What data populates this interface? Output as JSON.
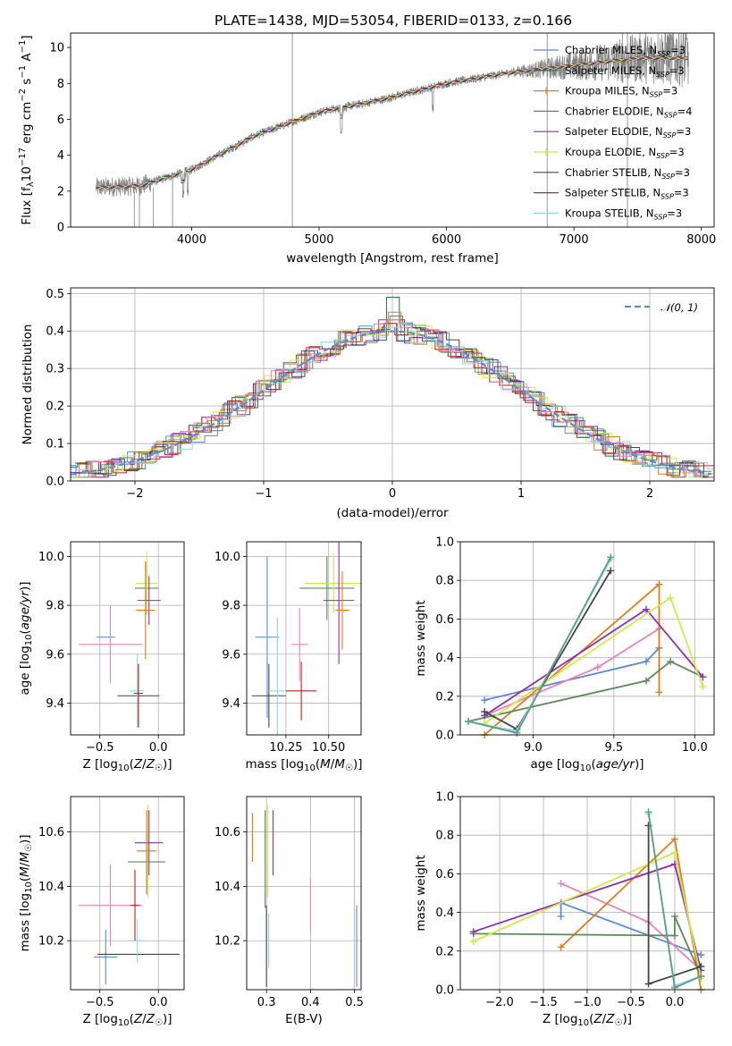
{
  "figure": {
    "title": "PLATE=1438, MJD=53054, FIBERID=0133, z=0.166"
  },
  "chart_data": [
    {
      "id": "spectrum",
      "type": "line",
      "xlabel": "wavelength [Angstrom, rest frame]",
      "ylabel": "Flux [f_λ 10^-17 erg cm^-2 s^-1 A^-1]",
      "xlim": [
        3050,
        8100
      ],
      "ylim": [
        0,
        10.8
      ],
      "xticks": [
        4000,
        5000,
        6000,
        7000,
        8000
      ],
      "yticks": [
        0,
        2,
        4,
        6,
        8,
        10
      ],
      "legend_position": "top-right",
      "grid": false,
      "series": [
        {
          "name": "Chabrier MILES, N_SSP=3",
          "color": "#5b8bd6",
          "x": [
            3250,
            3600,
            4000,
            4500,
            5000,
            5500,
            6000,
            6500,
            7000,
            7500
          ],
          "y": [
            2.2,
            2.3,
            3.2,
            5.1,
            6.4,
            7.1,
            8.0,
            8.6,
            9.0,
            9.4
          ]
        },
        {
          "name": "Salpeter MILES, N_SSP=3",
          "color": "#2f6b4f",
          "x": [
            3250,
            3600,
            4000,
            4500,
            5000,
            5500,
            6000,
            6500,
            7000,
            7500
          ],
          "y": [
            2.2,
            2.3,
            3.2,
            5.1,
            6.4,
            7.1,
            8.0,
            8.6,
            9.0,
            9.4
          ]
        },
        {
          "name": "Kroupa MILES, N_SSP=3",
          "color": "#e07b18",
          "x": [
            3250,
            3600,
            4000,
            4500,
            5000,
            5500,
            6000,
            6500,
            7000,
            7500
          ],
          "y": [
            2.2,
            2.3,
            3.2,
            5.1,
            6.4,
            7.1,
            8.0,
            8.6,
            9.0,
            9.4
          ]
        },
        {
          "name": "Chabrier ELODIE, N_SSP=4",
          "color": "#5a8a5a",
          "x": [
            3250,
            3600,
            4000,
            4500,
            5000,
            5500,
            6000,
            6500,
            7000,
            7500
          ],
          "y": [
            2.2,
            2.3,
            3.2,
            5.1,
            6.4,
            7.1,
            8.0,
            8.6,
            9.0,
            9.4
          ]
        },
        {
          "name": "Salpeter ELODIE, N_SSP=3",
          "color": "#8e2fb0",
          "x": [
            3250,
            3600,
            4000,
            4500,
            5000,
            5500,
            6000,
            6500,
            7000,
            7500
          ],
          "y": [
            2.2,
            2.3,
            3.2,
            5.1,
            6.4,
            7.1,
            8.0,
            8.6,
            9.0,
            9.4
          ]
        },
        {
          "name": "Kroupa ELODIE, N_SSP=3",
          "color": "#d2e84a",
          "x": [
            3250,
            3600,
            4000,
            4500,
            5000,
            5500,
            6000,
            6500,
            7000,
            7500
          ],
          "y": [
            2.2,
            2.3,
            3.2,
            5.1,
            6.4,
            7.1,
            8.0,
            8.6,
            9.0,
            9.4
          ]
        },
        {
          "name": "Chabrier STELIB, N_SSP=3",
          "color": "#444444",
          "x": [
            3250,
            3600,
            4000,
            4500,
            5000,
            5500,
            6000,
            6500,
            7000,
            7500
          ],
          "y": [
            2.2,
            2.3,
            3.2,
            5.1,
            6.4,
            7.1,
            8.0,
            8.6,
            9.0,
            9.4
          ]
        },
        {
          "name": "Salpeter STELIB, N_SSP=3",
          "color": "#c0211c",
          "x": [
            3250,
            3600,
            4000,
            4500,
            5000,
            5500,
            6000,
            6500,
            7000,
            7500
          ],
          "y": [
            2.2,
            2.3,
            3.2,
            5.1,
            6.4,
            7.1,
            8.0,
            8.6,
            9.0,
            9.4
          ]
        },
        {
          "name": "Kroupa STELIB, N_SSP=3",
          "color": "#8fd8de",
          "x": [
            3250,
            3600,
            4000,
            4500,
            5000,
            5500,
            6000,
            6500,
            7000,
            7500
          ],
          "y": [
            2.2,
            2.3,
            3.2,
            5.1,
            6.4,
            7.1,
            8.0,
            8.6,
            9.0,
            9.4
          ]
        }
      ],
      "observed_color": "#808080",
      "observed_envelope_x": [
        3250,
        3600,
        4000,
        4500,
        5000,
        5500,
        6000,
        6500,
        7000,
        7500,
        7900
      ],
      "observed_envelope_y": [
        2.2,
        2.3,
        3.2,
        5.1,
        6.4,
        7.1,
        8.0,
        8.6,
        9.0,
        9.4,
        9.6
      ]
    },
    {
      "id": "residuals",
      "type": "area",
      "xlabel": "(data-model)/error",
      "ylabel": "Normed distribution",
      "xlim": [
        -2.5,
        2.5
      ],
      "ylim": [
        0,
        0.515
      ],
      "xticks": [
        -2,
        -1,
        0,
        1,
        2
      ],
      "yticks": [
        0.0,
        0.1,
        0.2,
        0.3,
        0.4,
        0.5
      ],
      "grid": true,
      "legend_position": "top-right",
      "reference_curve": {
        "name": "𝒩(0, 1)",
        "color": "#5b8bd6",
        "style": "dashed",
        "mean": 0,
        "sigma": 1
      },
      "bin_edges": [
        -2.5,
        -2.4,
        -2.3,
        -2.2,
        -2.1,
        -2.0,
        -1.9,
        -1.8,
        -1.7,
        -1.6,
        -1.5,
        -1.4,
        -1.3,
        -1.2,
        -1.1,
        -1.0,
        -0.9,
        -0.8,
        -0.7,
        -0.6,
        -0.5,
        -0.4,
        -0.3,
        -0.2,
        -0.1,
        0.0,
        0.1,
        0.2,
        0.3,
        0.4,
        0.5,
        0.6,
        0.7,
        0.8,
        0.9,
        1.0,
        1.1,
        1.2,
        1.3,
        1.4,
        1.5,
        1.6,
        1.7,
        1.8,
        1.9,
        2.0,
        2.1,
        2.2,
        2.3,
        2.4,
        2.5
      ],
      "series_colors": [
        "#5b8bd6",
        "#2f6b4f",
        "#e07b18",
        "#5a8a5a",
        "#8e2fb0",
        "#d2e84a",
        "#444444",
        "#c0211c",
        "#8fd8de",
        "#e884b8"
      ],
      "base_density_note": "histograms follow the standard normal within ±0.05",
      "peak_values": {
        "x": [
          0.0,
          0.0,
          0.0,
          0.0,
          0.0,
          0.0,
          0.0,
          0.0,
          0.0,
          0.0
        ],
        "y": [
          0.42,
          0.49,
          0.45,
          0.44,
          0.43,
          0.42,
          0.41,
          0.42,
          0.41,
          0.43
        ]
      }
    },
    {
      "id": "age_vs_Z",
      "type": "scatter",
      "xlabel": "Z [log10(Z/Z☉)]",
      "ylabel": "age  [log10(age/yr)]",
      "xlim": [
        -0.75,
        0.22
      ],
      "ylim": [
        9.27,
        10.06
      ],
      "xticks": [
        -0.5,
        0.0
      ],
      "yticks": [
        9.4,
        9.6,
        9.8,
        10.0
      ],
      "grid": true,
      "points": [
        {
          "color": "#5b8bd6",
          "x": -0.45,
          "y": 9.67,
          "xerr": 0.08,
          "yerr": 0.0
        },
        {
          "color": "#e884b8",
          "x": -0.41,
          "y": 9.64,
          "xerr": 0.27,
          "yerr": 0.16
        },
        {
          "color": "#444444",
          "x": -0.17,
          "y": 9.43,
          "xerr": 0.18,
          "yerr": 0.13
        },
        {
          "color": "#5a8a5a",
          "x": -0.1,
          "y": 9.87,
          "xerr": 0.1,
          "yerr": 0.1
        },
        {
          "color": "#d2e84a",
          "x": -0.1,
          "y": 9.89,
          "xerr": 0.09,
          "yerr": 0.13
        },
        {
          "color": "#8e2fb0",
          "x": -0.08,
          "y": 9.82,
          "xerr": 0.1,
          "yerr": 0.1
        },
        {
          "color": "#e07b18",
          "x": -0.11,
          "y": 9.78,
          "xerr": 0.08,
          "yerr": 0.2
        },
        {
          "color": "#8fd8de",
          "x": -0.18,
          "y": 9.45,
          "xerr": 0.06,
          "yerr": 0.15
        },
        {
          "color": "#c0211c",
          "x": -0.17,
          "y": 9.44,
          "xerr": 0.04,
          "yerr": 0.12
        }
      ]
    },
    {
      "id": "age_vs_mass",
      "type": "scatter",
      "xlabel": "mass [log10(M/M☉)]",
      "ylabel": "",
      "xlim": [
        10.02,
        10.69
      ],
      "ylim": [
        9.27,
        10.06
      ],
      "xticks": [
        10.25,
        10.5
      ],
      "yticks": [
        9.4,
        9.6,
        9.8,
        10.0
      ],
      "grid": true,
      "points": [
        {
          "color": "#5b8bd6",
          "x": 10.14,
          "y": 9.67,
          "xerr": 0.07,
          "yerr": 0.33
        },
        {
          "color": "#444444",
          "x": 10.15,
          "y": 9.43,
          "xerr": 0.1,
          "yerr": 0.13
        },
        {
          "color": "#8fd8de",
          "x": 10.2,
          "y": 9.45,
          "xerr": 0.05,
          "yerr": 0.3
        },
        {
          "color": "#e884b8",
          "x": 10.33,
          "y": 9.64,
          "xerr": 0.05,
          "yerr": 0.15
        },
        {
          "color": "#c0211c",
          "x": 10.34,
          "y": 9.45,
          "xerr": 0.09,
          "yerr": 0.12
        },
        {
          "color": "#5a8a5a",
          "x": 10.49,
          "y": 9.87,
          "xerr": 0.16,
          "yerr": 0.13
        },
        {
          "color": "#d2e84a",
          "x": 10.53,
          "y": 9.89,
          "xerr": 0.17,
          "yerr": 0.12
        },
        {
          "color": "#8e2fb0",
          "x": 10.56,
          "y": 9.82,
          "xerr": 0.09,
          "yerr": 0.26
        },
        {
          "color": "#e07b18",
          "x": 10.58,
          "y": 9.78,
          "xerr": 0.04,
          "yerr": 0.16
        }
      ]
    },
    {
      "id": "mass_weight_vs_age",
      "type": "line",
      "xlabel": "age  [log10(age/yr)]",
      "ylabel": "mass weight",
      "xlim": [
        8.55,
        10.12
      ],
      "ylim": [
        0,
        1.0
      ],
      "xticks": [
        9.0,
        9.5,
        10.0
      ],
      "yticks": [
        0.0,
        0.2,
        0.4,
        0.6,
        0.8,
        1.0
      ],
      "grid": true,
      "series": [
        {
          "color": "#5b8bd6",
          "x": [
            8.7,
            9.7,
            9.78
          ],
          "y": [
            0.18,
            0.38,
            0.45
          ]
        },
        {
          "color": "#e884b8",
          "x": [
            8.7,
            9.4,
            9.78
          ],
          "y": [
            0.1,
            0.35,
            0.55
          ]
        },
        {
          "color": "#e07b18",
          "x": [
            8.7,
            9.78,
            9.78
          ],
          "y": [
            0.0,
            0.78,
            0.22
          ]
        },
        {
          "color": "#5a8a5a",
          "x": [
            8.6,
            9.7,
            9.85,
            10.05
          ],
          "y": [
            0.07,
            0.28,
            0.38,
            0.3
          ]
        },
        {
          "color": "#8e2fb0",
          "x": [
            8.7,
            9.7,
            10.05
          ],
          "y": [
            0.1,
            0.65,
            0.3
          ]
        },
        {
          "color": "#d2e84a",
          "x": [
            8.7,
            9.85,
            10.05
          ],
          "y": [
            0.06,
            0.71,
            0.25
          ]
        },
        {
          "color": "#444444",
          "x": [
            8.7,
            8.9,
            9.48
          ],
          "y": [
            0.12,
            0.03,
            0.85
          ]
        },
        {
          "color": "#8fd8de",
          "x": [
            8.6,
            8.9,
            9.48
          ],
          "y": [
            0.07,
            0.02,
            0.91
          ]
        },
        {
          "color": "#5b9e8a",
          "x": [
            8.6,
            8.9,
            9.48
          ],
          "y": [
            0.07,
            0.01,
            0.92
          ]
        }
      ]
    },
    {
      "id": "mass_vs_Z",
      "type": "scatter",
      "xlabel": "Z [log10(Z/Z☉)]",
      "ylabel": "mass [log10(M/M☉)]",
      "xlim": [
        -0.75,
        0.22
      ],
      "ylim": [
        10.02,
        10.73
      ],
      "xticks": [
        -0.5,
        0.0
      ],
      "yticks": [
        10.2,
        10.4,
        10.6
      ],
      "grid": true,
      "points": [
        {
          "color": "#5b8bd6",
          "x": -0.45,
          "y": 10.14,
          "xerr": 0.1,
          "yerr": 0.1
        },
        {
          "color": "#e884b8",
          "x": -0.41,
          "y": 10.33,
          "xerr": 0.27,
          "yerr": 0.15
        },
        {
          "color": "#444444",
          "x": -0.17,
          "y": 10.15,
          "xerr": 0.35,
          "yerr": 0.0
        },
        {
          "color": "#8fd8de",
          "x": -0.18,
          "y": 10.2,
          "xerr": 0.06,
          "yerr": 0.08
        },
        {
          "color": "#c0211c",
          "x": -0.2,
          "y": 10.33,
          "xerr": 0.04,
          "yerr": 0.13
        },
        {
          "color": "#5a8a5a",
          "x": -0.1,
          "y": 10.49,
          "xerr": 0.16,
          "yerr": 0.12
        },
        {
          "color": "#d2e84a",
          "x": -0.09,
          "y": 10.53,
          "xerr": 0.1,
          "yerr": 0.17
        },
        {
          "color": "#8e2fb0",
          "x": -0.08,
          "y": 10.56,
          "xerr": 0.12,
          "yerr": 0.12
        },
        {
          "color": "#e07b18",
          "x": -0.1,
          "y": 10.53,
          "xerr": 0.08,
          "yerr": 0.15
        }
      ]
    },
    {
      "id": "mass_vs_ebv",
      "type": "scatter",
      "xlabel": "E(B-V)",
      "ylabel": "",
      "xlim": [
        0.255,
        0.515
      ],
      "ylim": [
        10.02,
        10.73
      ],
      "xticks": [
        0.3,
        0.4,
        0.5
      ],
      "yticks": [
        10.2,
        10.4,
        10.6
      ],
      "grid": true,
      "points": [
        {
          "color": "#e07b18",
          "x": 0.268,
          "y": 10.58,
          "xerr": 0,
          "yerr": 0.09
        },
        {
          "color": "#5a8a5a",
          "x": 0.297,
          "y": 10.5,
          "xerr": 0,
          "yerr": 0.18
        },
        {
          "color": "#444444",
          "x": 0.3,
          "y": 10.18,
          "xerr": 0,
          "yerr": 0.15
        },
        {
          "color": "#d2e84a",
          "x": 0.303,
          "y": 10.53,
          "xerr": 0,
          "yerr": 0.17
        },
        {
          "color": "#8fd8de",
          "x": 0.305,
          "y": 10.2,
          "xerr": 0,
          "yerr": 0.1
        },
        {
          "color": "#8e2fb0",
          "x": 0.315,
          "y": 10.56,
          "xerr": 0,
          "yerr": 0.12
        },
        {
          "color": "#e884b8",
          "x": 0.4,
          "y": 10.33,
          "xerr": 0,
          "yerr": 0.1
        },
        {
          "color": "#5b8bd6",
          "x": 0.505,
          "y": 10.18,
          "xerr": 0,
          "yerr": 0.15
        }
      ]
    },
    {
      "id": "mass_weight_vs_Z",
      "type": "line",
      "xlabel": "Z [log10(Z/Z☉)]",
      "ylabel": "mass weight",
      "xlim": [
        -2.45,
        0.45
      ],
      "ylim": [
        0,
        1.0
      ],
      "xticks": [
        -2.0,
        -1.5,
        -1.0,
        -0.5,
        0.0
      ],
      "yticks": [
        0.0,
        0.2,
        0.4,
        0.6,
        0.8,
        1.0
      ],
      "grid": true,
      "series": [
        {
          "color": "#5b8bd6",
          "x": [
            -1.3,
            -1.3,
            0.3
          ],
          "y": [
            0.38,
            0.45,
            0.18
          ]
        },
        {
          "color": "#e884b8",
          "x": [
            -1.3,
            -0.3,
            0.3
          ],
          "y": [
            0.55,
            0.35,
            0.1
          ]
        },
        {
          "color": "#e07b18",
          "x": [
            -1.3,
            0.0,
            0.3
          ],
          "y": [
            0.22,
            0.78,
            0.0
          ]
        },
        {
          "color": "#5a8a5a",
          "x": [
            -2.3,
            0.0,
            0.0,
            0.3
          ],
          "y": [
            0.29,
            0.28,
            0.38,
            0.07
          ]
        },
        {
          "color": "#8e2fb0",
          "x": [
            -2.3,
            0.0,
            0.3
          ],
          "y": [
            0.3,
            0.65,
            0.1
          ]
        },
        {
          "color": "#d2e84a",
          "x": [
            -2.3,
            0.0,
            0.3
          ],
          "y": [
            0.25,
            0.71,
            0.06
          ]
        },
        {
          "color": "#444444",
          "x": [
            -0.3,
            -0.3,
            0.3
          ],
          "y": [
            0.85,
            0.03,
            0.12
          ]
        },
        {
          "color": "#8fd8de",
          "x": [
            -0.3,
            0.0,
            0.3
          ],
          "y": [
            0.91,
            0.02,
            0.07
          ]
        },
        {
          "color": "#5b9e8a",
          "x": [
            -0.3,
            0.0,
            0.3
          ],
          "y": [
            0.92,
            0.01,
            0.07
          ]
        }
      ]
    }
  ]
}
